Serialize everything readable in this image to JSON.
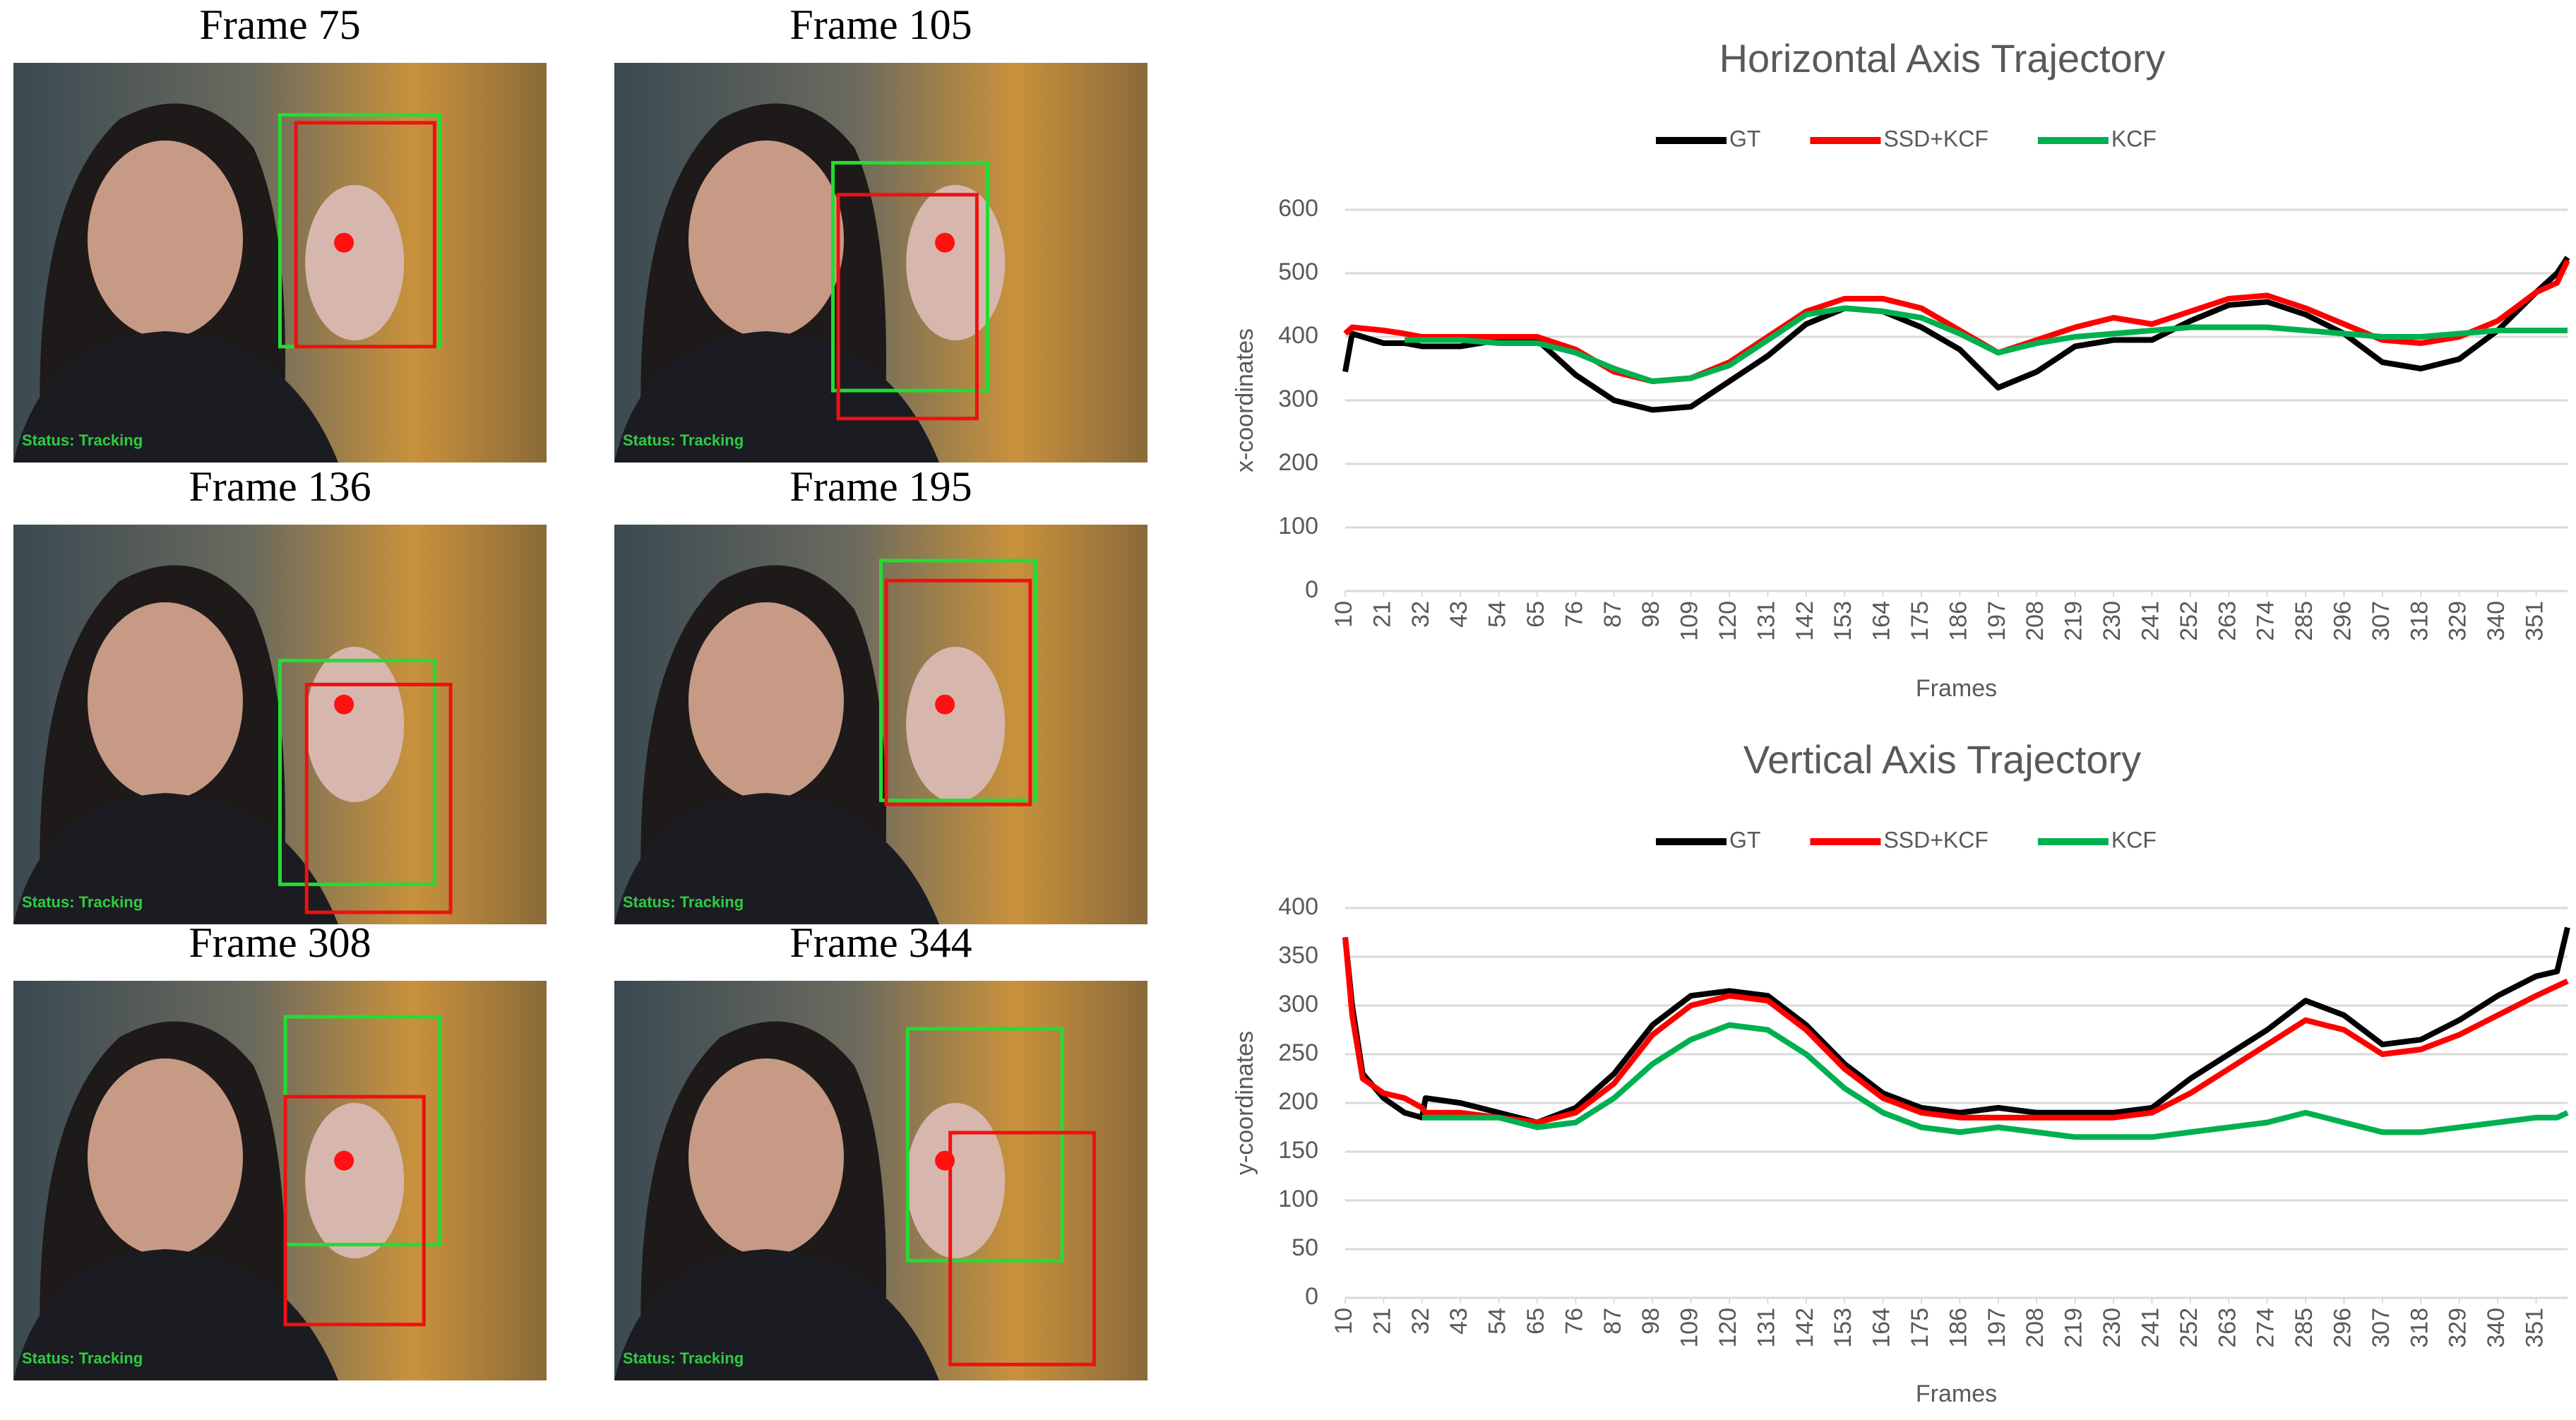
{
  "frames": [
    {
      "title": "Frame 75",
      "status": "Status: Tracking"
    },
    {
      "title": "Frame 105",
      "status": "Status: Tracking"
    },
    {
      "title": "Frame 136",
      "status": "Status: Tracking"
    },
    {
      "title": "Frame 195",
      "status": "Status: Tracking"
    },
    {
      "title": "Frame 308",
      "status": "Status: Tracking"
    },
    {
      "title": "Frame 344",
      "status": "Status: Tracking"
    }
  ],
  "chart_data": [
    {
      "type": "line",
      "title": "Horizontal Axis Trajectory",
      "x_label": "Frames",
      "y_label": "x-coordinates",
      "x": [
        10,
        12,
        21,
        27,
        32,
        43,
        54,
        65,
        76,
        87,
        98,
        109,
        120,
        131,
        142,
        153,
        164,
        175,
        186,
        197,
        208,
        219,
        230,
        241,
        252,
        263,
        274,
        285,
        296,
        307,
        318,
        329,
        340,
        351,
        357,
        360
      ],
      "series": [
        {
          "name": "GT",
          "color": "#000000",
          "values": [
            345,
            405,
            390,
            390,
            385,
            385,
            395,
            395,
            340,
            300,
            285,
            290,
            330,
            370,
            420,
            445,
            440,
            415,
            380,
            320,
            345,
            385,
            395,
            395,
            425,
            450,
            455,
            435,
            405,
            360,
            350,
            365,
            410,
            470,
            500,
            525
          ]
        },
        {
          "name": "SSD+KCF",
          "color": "#ff0000",
          "values": [
            405,
            415,
            410,
            405,
            400,
            400,
            400,
            400,
            380,
            345,
            330,
            335,
            360,
            400,
            440,
            460,
            460,
            445,
            410,
            375,
            395,
            415,
            430,
            420,
            440,
            460,
            465,
            445,
            420,
            395,
            390,
            400,
            425,
            470,
            485,
            520
          ]
        },
        {
          "name": "KCF",
          "color": "#00b050",
          "values": [
            null,
            null,
            null,
            395,
            395,
            395,
            390,
            390,
            375,
            350,
            330,
            335,
            355,
            395,
            435,
            445,
            440,
            430,
            405,
            375,
            390,
            400,
            405,
            410,
            415,
            415,
            415,
            410,
            405,
            400,
            400,
            405,
            410,
            410,
            410,
            410
          ]
        }
      ],
      "xlim": [
        10,
        360
      ],
      "xticks": [
        10,
        21,
        32,
        43,
        54,
        65,
        76,
        87,
        98,
        109,
        120,
        131,
        142,
        153,
        164,
        175,
        186,
        197,
        208,
        219,
        230,
        241,
        252,
        263,
        274,
        285,
        296,
        307,
        318,
        329,
        340,
        351
      ],
      "ylim": [
        0,
        600
      ],
      "yticks": [
        0,
        100,
        200,
        300,
        400,
        500,
        600
      ],
      "grid": true,
      "legend": "top"
    },
    {
      "type": "line",
      "title": "Vertical Axis Trajectory",
      "x_label": "Frames",
      "y_label": "y-coordinates",
      "x": [
        10,
        12,
        15,
        21,
        27,
        32,
        33,
        43,
        54,
        65,
        76,
        87,
        98,
        109,
        120,
        131,
        142,
        153,
        164,
        175,
        186,
        197,
        208,
        219,
        230,
        241,
        252,
        263,
        274,
        285,
        296,
        307,
        318,
        329,
        340,
        351,
        357,
        360
      ],
      "series": [
        {
          "name": "GT",
          "color": "#000000",
          "values": [
            370,
            300,
            230,
            205,
            190,
            185,
            205,
            200,
            190,
            180,
            195,
            230,
            280,
            310,
            315,
            310,
            280,
            240,
            210,
            195,
            190,
            195,
            190,
            190,
            190,
            195,
            225,
            250,
            275,
            305,
            290,
            260,
            265,
            285,
            310,
            330,
            335,
            380
          ]
        },
        {
          "name": "SSD+KCF",
          "color": "#ff0000",
          "values": [
            370,
            290,
            225,
            210,
            205,
            195,
            190,
            190,
            185,
            180,
            190,
            220,
            270,
            300,
            310,
            305,
            275,
            235,
            205,
            190,
            185,
            185,
            185,
            185,
            185,
            190,
            210,
            235,
            260,
            285,
            275,
            250,
            255,
            270,
            290,
            310,
            320,
            325
          ]
        },
        {
          "name": "KCF",
          "color": "#00b050",
          "values": [
            null,
            null,
            null,
            null,
            null,
            185,
            185,
            185,
            185,
            175,
            180,
            205,
            240,
            265,
            280,
            275,
            250,
            215,
            190,
            175,
            170,
            175,
            170,
            165,
            165,
            165,
            170,
            175,
            180,
            190,
            180,
            170,
            170,
            175,
            180,
            185,
            185,
            190
          ]
        }
      ],
      "xlim": [
        10,
        360
      ],
      "xticks": [
        10,
        21,
        32,
        43,
        54,
        65,
        76,
        87,
        98,
        109,
        120,
        131,
        142,
        153,
        164,
        175,
        186,
        197,
        208,
        219,
        230,
        241,
        252,
        263,
        274,
        285,
        296,
        307,
        318,
        329,
        340,
        351
      ],
      "ylim": [
        0,
        400
      ],
      "yticks": [
        0,
        50,
        100,
        150,
        200,
        250,
        300,
        350,
        400
      ],
      "grid": true,
      "legend": "top"
    }
  ]
}
